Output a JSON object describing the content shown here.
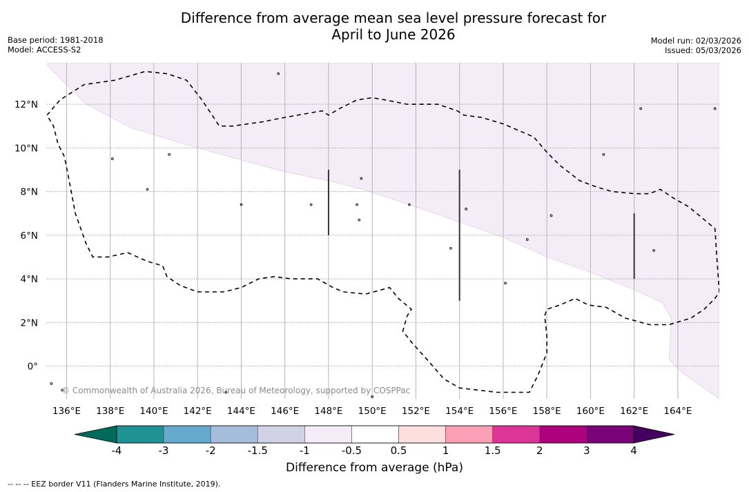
{
  "title_line1": "Difference from average mean sea level pressure forecast for",
  "title_line2": "April to June 2026",
  "base_period": "Base period: 1981-2018",
  "model": "Model: ACCESS-S2",
  "model_run": "Model run: 02/03/2026",
  "issued": "Issued: 05/03/2026",
  "copyright": "© Commonwealth of Australia 2026, Bureau of Meteorology, supported by COSPPac",
  "footer_note": "--  --  -- EEZ border V11 (Flanders Marine Institute, 2019).",
  "colorbar": {
    "label": "Difference from average (hPa)",
    "ticks": [
      "-4",
      "-3",
      "-2",
      "-1.5",
      "-1",
      "-0.5",
      "0.5",
      "1",
      "1.5",
      "2",
      "3",
      "4"
    ],
    "under_color": "#006b5a",
    "over_color": "#45005f",
    "bin_colors": [
      "#1f9294",
      "#66a9cf",
      "#a6bcdb",
      "#d1d2e6",
      "#f4ecf6",
      "#ffffff",
      "#fde0dd",
      "#fa9fb5",
      "#dd3497",
      "#ae017e",
      "#7a0177"
    ]
  },
  "map": {
    "lon_range": [
      135.1,
      165.9
    ],
    "lat_range": [
      -1.5,
      13.9
    ],
    "lon_ticks": [
      136,
      138,
      140,
      142,
      144,
      146,
      148,
      150,
      152,
      154,
      156,
      158,
      160,
      162,
      164
    ],
    "lon_tick_labels": [
      "136°E",
      "138°E",
      "140°E",
      "142°E",
      "144°E",
      "146°E",
      "148°E",
      "150°E",
      "152°E",
      "154°E",
      "156°E",
      "158°E",
      "160°E",
      "162°E",
      "164°E"
    ],
    "lat_ticks": [
      0,
      2,
      4,
      6,
      8,
      10,
      12
    ],
    "lat_tick_labels": [
      "0°",
      "2°N",
      "4°N",
      "6°N",
      "8°N",
      "10°N",
      "12°N"
    ],
    "shaded_region": {
      "category": "-1 to -0.5",
      "color": "#f4ecf6",
      "boundary": [
        [
          135.0,
          13.9
        ],
        [
          136.9,
          12.0
        ],
        [
          139.0,
          10.9
        ],
        [
          142.0,
          10.0
        ],
        [
          146.0,
          8.9
        ],
        [
          148.0,
          8.5
        ],
        [
          149.9,
          8.0
        ],
        [
          152.0,
          7.3
        ],
        [
          154.0,
          6.6
        ],
        [
          156.0,
          5.9
        ],
        [
          158.0,
          5.0
        ],
        [
          160.0,
          4.3
        ],
        [
          162.0,
          3.5
        ],
        [
          163.3,
          2.9
        ],
        [
          163.7,
          2.2
        ],
        [
          163.6,
          0.3
        ],
        [
          164.2,
          -0.3
        ],
        [
          165.9,
          -1.5
        ],
        [
          165.9,
          13.9
        ]
      ]
    },
    "eez_border": [
      [
        135.1,
        11.5
      ],
      [
        135.7,
        12.2
      ],
      [
        136.8,
        12.9
      ],
      [
        138.2,
        13.1
      ],
      [
        139.6,
        13.5
      ],
      [
        140.6,
        13.4
      ],
      [
        141.5,
        13.1
      ],
      [
        142.2,
        12.2
      ],
      [
        143.0,
        11.0
      ],
      [
        143.6,
        11.0
      ],
      [
        145.0,
        11.2
      ],
      [
        146.0,
        11.4
      ],
      [
        147.7,
        11.7
      ],
      [
        148.0,
        11.5
      ],
      [
        148.5,
        11.8
      ],
      [
        149.3,
        12.2
      ],
      [
        150.0,
        12.3
      ],
      [
        150.6,
        12.2
      ],
      [
        151.6,
        12.0
      ],
      [
        152.4,
        12.0
      ],
      [
        153.0,
        12.0
      ],
      [
        153.9,
        11.7
      ],
      [
        154.2,
        11.5
      ],
      [
        155.0,
        11.4
      ],
      [
        156.0,
        11.1
      ],
      [
        156.7,
        10.8
      ],
      [
        157.4,
        10.5
      ],
      [
        158.0,
        9.8
      ],
      [
        158.6,
        9.2
      ],
      [
        159.5,
        8.5
      ],
      [
        160.3,
        8.2
      ],
      [
        161.0,
        8.0
      ],
      [
        162.0,
        7.9
      ],
      [
        162.7,
        7.9
      ],
      [
        163.2,
        8.1
      ],
      [
        163.8,
        7.7
      ],
      [
        164.5,
        7.3
      ],
      [
        165.1,
        6.8
      ],
      [
        165.7,
        6.3
      ],
      [
        165.8,
        4.8
      ],
      [
        165.9,
        3.4
      ],
      [
        165.7,
        3.1
      ],
      [
        165.2,
        2.6
      ],
      [
        164.6,
        2.2
      ],
      [
        163.6,
        1.9
      ],
      [
        162.7,
        1.9
      ],
      [
        161.6,
        2.2
      ],
      [
        160.7,
        2.7
      ],
      [
        159.9,
        2.8
      ],
      [
        159.3,
        3.1
      ],
      [
        158.6,
        2.8
      ],
      [
        158.0,
        2.6
      ],
      [
        157.9,
        2.3
      ],
      [
        158.0,
        1.4
      ],
      [
        158.0,
        0.6
      ],
      [
        157.6,
        -0.4
      ],
      [
        157.2,
        -1.2
      ],
      [
        155.7,
        -1.2
      ],
      [
        154.0,
        -1.0
      ],
      [
        153.3,
        -0.6
      ],
      [
        152.6,
        0.2
      ],
      [
        151.8,
        1.1
      ],
      [
        151.4,
        1.6
      ],
      [
        151.6,
        2.3
      ],
      [
        151.8,
        2.6
      ],
      [
        151.2,
        3.1
      ],
      [
        150.8,
        3.6
      ],
      [
        149.7,
        3.3
      ],
      [
        148.7,
        3.4
      ],
      [
        148.2,
        3.6
      ],
      [
        147.5,
        4.0
      ],
      [
        146.3,
        4.0
      ],
      [
        145.5,
        4.1
      ],
      [
        144.8,
        4.0
      ],
      [
        144.0,
        3.6
      ],
      [
        143.2,
        3.4
      ],
      [
        142.0,
        3.4
      ],
      [
        141.2,
        3.7
      ],
      [
        140.6,
        4.1
      ],
      [
        140.4,
        4.6
      ],
      [
        139.7,
        4.8
      ],
      [
        138.8,
        5.2
      ],
      [
        137.9,
        5.0
      ],
      [
        137.2,
        5.0
      ],
      [
        136.9,
        5.6
      ],
      [
        136.4,
        7.0
      ],
      [
        136.1,
        8.6
      ],
      [
        135.9,
        9.6
      ],
      [
        135.6,
        10.2
      ],
      [
        135.4,
        11.0
      ],
      [
        135.1,
        11.5
      ]
    ],
    "vertical_lines": [
      {
        "lon": 148,
        "lat_from": 6.0,
        "lat_to": 9.0
      },
      {
        "lon": 154,
        "lat_from": 3.0,
        "lat_to": 9.0
      },
      {
        "lon": 162,
        "lat_from": 4.0,
        "lat_to": 7.0
      }
    ],
    "islands": [
      {
        "lon": 145.7,
        "lat": 13.4
      },
      {
        "lon": 138.1,
        "lat": 9.5
      },
      {
        "lon": 158.2,
        "lat": 6.9
      },
      {
        "lon": 162.9,
        "lat": 5.3
      },
      {
        "lon": 151.7,
        "lat": 7.4
      },
      {
        "lon": 153.6,
        "lat": 5.4
      },
      {
        "lon": 135.3,
        "lat": -0.8
      },
      {
        "lon": 135.8,
        "lat": -1.1
      },
      {
        "lon": 143.3,
        "lat": -1.2
      },
      {
        "lon": 150.0,
        "lat": -1.4
      },
      {
        "lon": 154.3,
        "lat": 7.2
      },
      {
        "lon": 147.2,
        "lat": 7.4
      },
      {
        "lon": 149.5,
        "lat": 8.6
      },
      {
        "lon": 160.6,
        "lat": 9.7
      },
      {
        "lon": 162.3,
        "lat": 11.8
      },
      {
        "lon": 165.7,
        "lat": 11.8
      },
      {
        "lon": 140.7,
        "lat": 9.7
      },
      {
        "lon": 139.7,
        "lat": 8.1
      },
      {
        "lon": 144.0,
        "lat": 7.4
      },
      {
        "lon": 149.3,
        "lat": 7.4
      },
      {
        "lon": 149.4,
        "lat": 6.7
      },
      {
        "lon": 156.1,
        "lat": 3.8
      },
      {
        "lon": 157.1,
        "lat": 5.8
      }
    ]
  }
}
